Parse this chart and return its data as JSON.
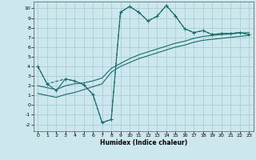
{
  "xlabel": "Humidex (Indice chaleur)",
  "bg_color": "#cce8ee",
  "grid_color": "#aacdd5",
  "line_color": "#1a6b6b",
  "xlim": [
    -0.5,
    23.5
  ],
  "ylim": [
    -2.7,
    10.7
  ],
  "xticks": [
    0,
    1,
    2,
    3,
    4,
    5,
    6,
    7,
    8,
    9,
    10,
    11,
    12,
    13,
    14,
    15,
    16,
    17,
    18,
    19,
    20,
    21,
    22,
    23
  ],
  "yticks": [
    -2,
    -1,
    0,
    1,
    2,
    3,
    4,
    5,
    6,
    7,
    8,
    9,
    10
  ],
  "series1_x": [
    0,
    1,
    2,
    3,
    4,
    5,
    6,
    7,
    8,
    9,
    10,
    11,
    12,
    13,
    14,
    15,
    16,
    17,
    18,
    19,
    20,
    21,
    22,
    23
  ],
  "series1_y": [
    4.0,
    2.2,
    1.5,
    2.7,
    2.5,
    2.1,
    1.1,
    -1.8,
    -1.5,
    9.6,
    10.2,
    9.6,
    8.7,
    9.2,
    10.3,
    9.2,
    7.9,
    7.5,
    7.7,
    7.3,
    7.4,
    7.4,
    7.5,
    7.3
  ],
  "series2_x": [
    0,
    1,
    2,
    3,
    4,
    5,
    6,
    7,
    8,
    9,
    10,
    11,
    12,
    13,
    14,
    15,
    16,
    17,
    18,
    19,
    20,
    21,
    22,
    23
  ],
  "series2_y": [
    2.0,
    1.8,
    1.6,
    2.0,
    2.2,
    2.3,
    2.5,
    2.8,
    3.8,
    4.3,
    4.8,
    5.2,
    5.5,
    5.8,
    6.1,
    6.4,
    6.6,
    6.9,
    7.1,
    7.2,
    7.3,
    7.35,
    7.45,
    7.5
  ],
  "series3_x": [
    0,
    1,
    2,
    3,
    4,
    5,
    6,
    7,
    8,
    9,
    10,
    11,
    12,
    13,
    14,
    15,
    16,
    17,
    18,
    19,
    20,
    21,
    22,
    23
  ],
  "series3_y": [
    1.2,
    1.0,
    0.8,
    1.1,
    1.3,
    1.6,
    1.9,
    2.2,
    3.4,
    4.0,
    4.4,
    4.8,
    5.1,
    5.4,
    5.7,
    6.0,
    6.2,
    6.5,
    6.7,
    6.8,
    6.9,
    7.0,
    7.1,
    7.2
  ],
  "series4_x": [
    0,
    1,
    3,
    4,
    5,
    6,
    7,
    8,
    9,
    10,
    11,
    12,
    13,
    14,
    15,
    16,
    17,
    18,
    19,
    20,
    21,
    22,
    23
  ],
  "series4_y": [
    4.0,
    2.2,
    2.7,
    2.5,
    2.1,
    1.1,
    -1.8,
    -1.5,
    9.6,
    10.2,
    9.6,
    8.7,
    9.2,
    10.3,
    9.2,
    7.9,
    7.5,
    7.7,
    7.3,
    7.4,
    7.4,
    7.5,
    7.3
  ]
}
